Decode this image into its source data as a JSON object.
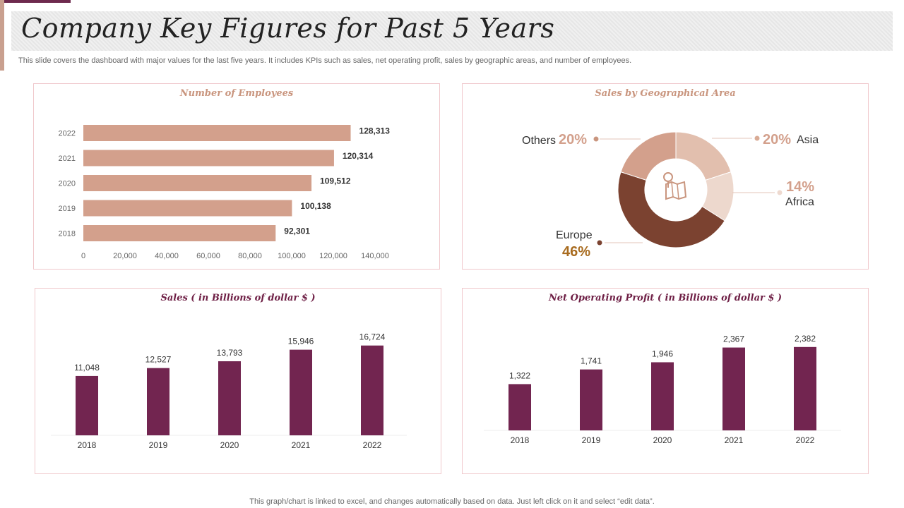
{
  "header": {
    "title": "Company Key Figures for Past 5 Years",
    "subtitle": "This slide covers the dashboard with major values for the last five years. It includes KPIs such as sales, net operating profit, sales by geographic areas, and number of employees."
  },
  "footer": {
    "note": "This graph/chart is linked to excel,  and changes automatically based on data. Just left click on it and select “edit data”."
  },
  "colors": {
    "accent": "#6e2a4e",
    "bar_tan": "#d3a08c",
    "bar_plum": "#722550",
    "europe": "#7b4230",
    "others": "#d3a08c",
    "asia": "#e2bfae",
    "africa": "#edd8cd"
  },
  "chart_data": [
    {
      "type": "bar",
      "orientation": "horizontal",
      "title": "Number of Employees",
      "categories": [
        "2022",
        "2021",
        "2020",
        "2019",
        "2018"
      ],
      "values": [
        128313,
        120314,
        109512,
        100138,
        92301
      ],
      "value_labels": [
        "128,313",
        "120,314",
        "109,512",
        "100,138",
        "92,301"
      ],
      "xlim": [
        0,
        140000
      ],
      "x_ticks": [
        "0",
        "20,000",
        "40,000",
        "60,000",
        "80,000",
        "100,000",
        "120,000",
        "140,000"
      ],
      "grid": false
    },
    {
      "type": "pie",
      "title": "Sales by Geographical Area",
      "center_icon": "map-location-icon",
      "slices": [
        {
          "name": "Asia",
          "value": 20,
          "label": "20%"
        },
        {
          "name": "Africa",
          "value": 14,
          "label": "14%"
        },
        {
          "name": "Europe",
          "value": 46,
          "label": "46%"
        },
        {
          "name": "Others",
          "value": 20,
          "label": "20%"
        }
      ]
    },
    {
      "type": "bar",
      "title": "Sales ( in Billions of dollar $ )",
      "categories": [
        "2018",
        "2019",
        "2020",
        "2021",
        "2022"
      ],
      "values": [
        11048,
        12527,
        13793,
        15946,
        16724
      ],
      "value_labels": [
        "11,048",
        "12,527",
        "13,793",
        "15,946",
        "16,724"
      ],
      "ylim": [
        0,
        18000
      ],
      "grid": false
    },
    {
      "type": "bar",
      "title": "Net Operating Profit ( in Billions of dollar $ )",
      "categories": [
        "2018",
        "2019",
        "2020",
        "2021",
        "2022"
      ],
      "values": [
        1322,
        1741,
        1946,
        2367,
        2382
      ],
      "value_labels": [
        "1,322",
        "1,741",
        "1,946",
        "2,367",
        "2,382"
      ],
      "ylim": [
        0,
        2600
      ],
      "grid": false
    }
  ]
}
